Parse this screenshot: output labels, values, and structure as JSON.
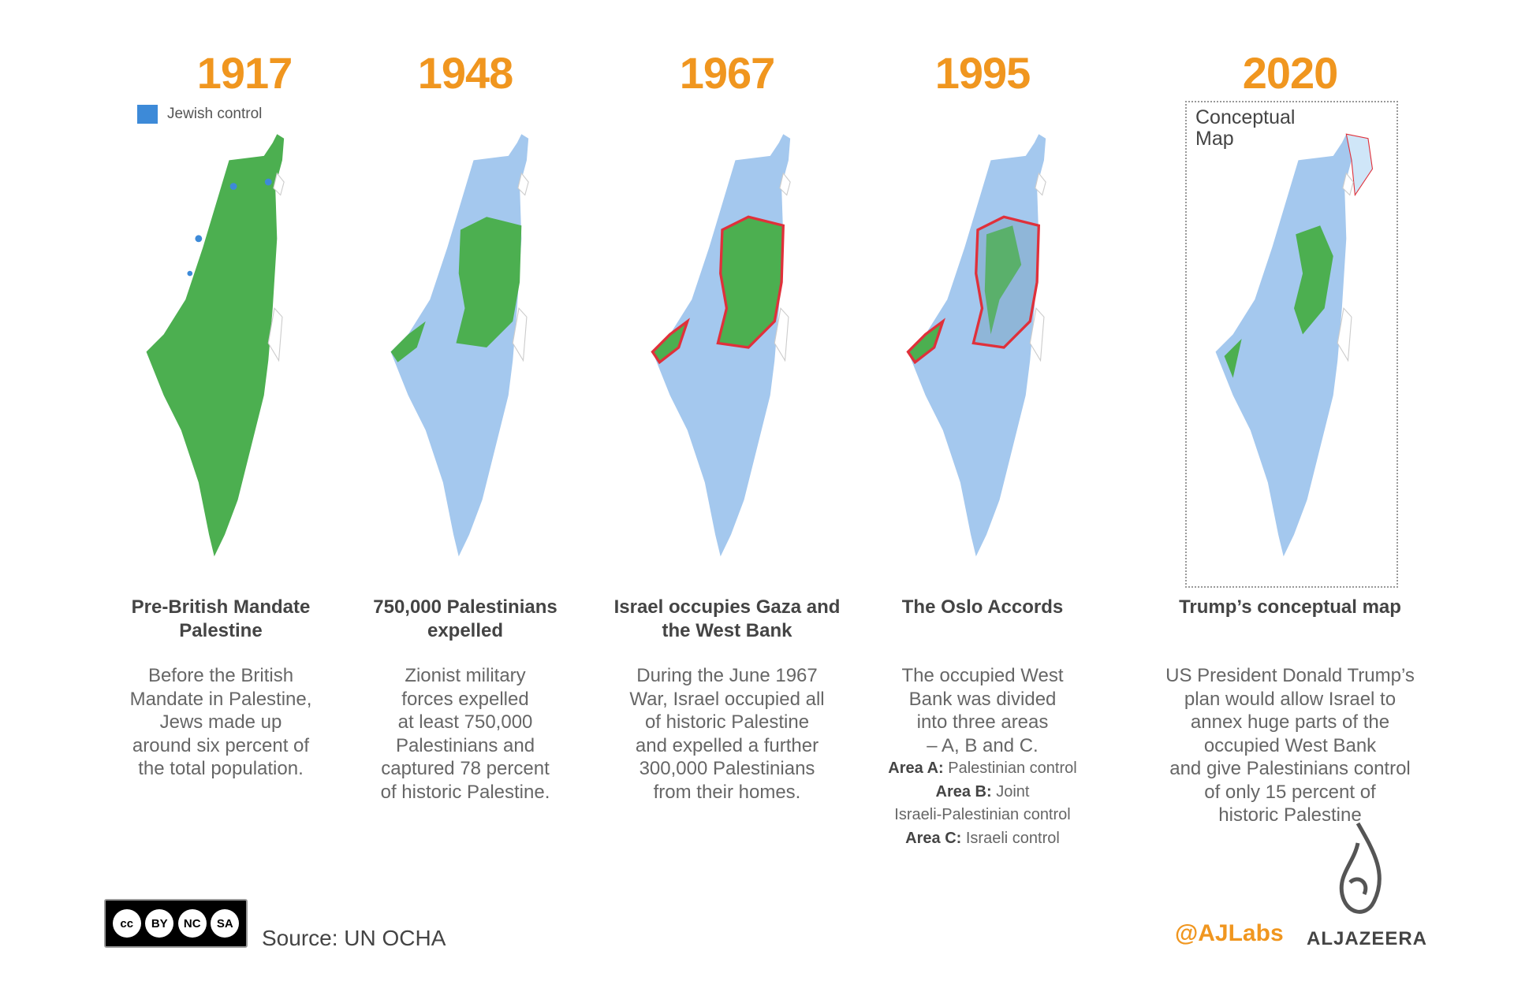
{
  "colors": {
    "accent": "#f0961f",
    "palestinian_land": "#4caf50",
    "israel": "#a4c8ee",
    "jewish_control": "#3d8ad8",
    "border": "#e0303a"
  },
  "legend": {
    "label": "Jewish control"
  },
  "panels": [
    {
      "year": "1917",
      "title": "Pre-British Mandate Palestine",
      "desc": [
        "Before the British",
        "Mandate in Palestine,",
        "Jews made up",
        "around six percent of",
        "the total population."
      ]
    },
    {
      "year": "1948",
      "title": "750,000 Palestinians expelled",
      "desc": [
        "Zionist military",
        "forces expelled",
        "at least 750,000",
        "Palestinians and",
        "captured 78 percent",
        "of historic Palestine."
      ]
    },
    {
      "year": "1967",
      "title": "Israel occupies Gaza and the West Bank",
      "desc": [
        "During the June 1967",
        "War, Israel occupied all",
        "of historic Palestine",
        "and expelled a further",
        "300,000 Palestinians",
        "from their homes."
      ]
    },
    {
      "year": "1995",
      "title": "The Oslo Accords",
      "desc": [
        "The occupied West",
        "Bank was divided",
        "into three areas",
        "– A, B and C."
      ],
      "areas": [
        {
          "label": "Area A:",
          "text": "Palestinian control"
        },
        {
          "label": "Area B:",
          "text": "Joint"
        },
        {
          "label": "",
          "text": "Israeli-Palestinian control"
        },
        {
          "label": "Area C:",
          "text": "Israeli control"
        }
      ]
    },
    {
      "year": "2020",
      "title": "Trump’s conceptual map",
      "box_label": "Conceptual Map",
      "desc": [
        "US President Donald Trump’s",
        "plan would allow Israel to",
        "annex huge parts of the",
        "occupied West Bank",
        "and give Palestinians control",
        "of only 15 percent of",
        "historic Palestine"
      ]
    }
  ],
  "footer": {
    "license": [
      "BY",
      "NC",
      "SA"
    ],
    "source": "Source: UN OCHA",
    "handle": "@AJLabs",
    "brand": "ALJAZEERA"
  }
}
